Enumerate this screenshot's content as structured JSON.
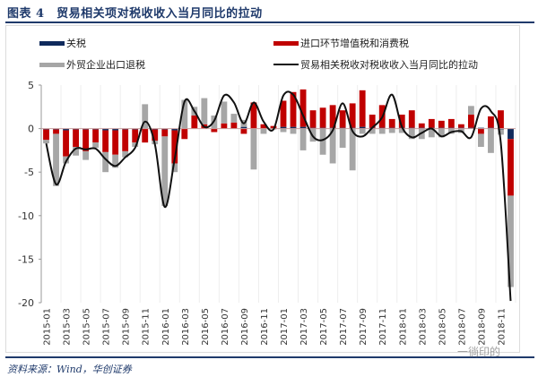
{
  "header": {
    "title": "图表 4　贸易相关项对税收收入当月同比的拉动"
  },
  "footer": {
    "source": "资料来源：Wind，华创证券",
    "watermark": "一徜印的"
  },
  "colors": {
    "tariff": "#0f2a5c",
    "import_vat": "#c00000",
    "export_rebate": "#a6a6a6",
    "line": "#111111",
    "axis": "#999999",
    "grid": "#eeeeee"
  },
  "chart_data": {
    "type": "bar",
    "stacked": true,
    "title": "贸易相关项对税收收入当月同比的拉动",
    "xlabel": "",
    "ylabel": "",
    "ylim": [
      -20,
      5
    ],
    "yticks": [
      5,
      0,
      -5,
      -10,
      -15,
      -20
    ],
    "grid": true,
    "legend_position": "top",
    "categories": [
      "2015-01",
      "2015-02",
      "2015-03",
      "2015-04",
      "2015-05",
      "2015-06",
      "2015-07",
      "2015-08",
      "2015-09",
      "2015-10",
      "2015-11",
      "2015-12",
      "2016-01",
      "2016-02",
      "2016-03",
      "2016-04",
      "2016-05",
      "2016-06",
      "2016-07",
      "2016-08",
      "2016-09",
      "2016-10",
      "2016-11",
      "2016-12",
      "2017-01",
      "2017-02",
      "2017-03",
      "2017-04",
      "2017-05",
      "2017-06",
      "2017-07",
      "2017-08",
      "2017-09",
      "2017-10",
      "2017-11",
      "2017-12",
      "2018-01",
      "2018-02",
      "2018-03",
      "2018-04",
      "2018-05",
      "2018-06",
      "2018-07",
      "2018-08",
      "2018-09",
      "2018-10",
      "2018-11",
      "2018-12"
    ],
    "xtick_labels": [
      "2015-01",
      "2015-03",
      "2015-05",
      "2015-07",
      "2015-09",
      "2015-11",
      "2016-01",
      "2016-03",
      "2016-05",
      "2016-07",
      "2016-09",
      "2016-11",
      "2017-01",
      "2017-03",
      "2017-05",
      "2017-07",
      "2017-09",
      "2017-11",
      "2018-01",
      "2018-03",
      "2018-05",
      "2018-07",
      "2018-09",
      "2018-11"
    ],
    "series": [
      {
        "name": "关税",
        "kind": "bar",
        "values": [
          -0.1,
          -0.1,
          -0.2,
          -0.1,
          -0.1,
          -0.1,
          -0.2,
          -0.2,
          -0.1,
          -0.1,
          0,
          -0.1,
          -0.1,
          -0.2,
          0,
          0,
          0,
          0,
          0,
          0,
          0.2,
          0,
          0,
          0,
          0.2,
          0.2,
          0.2,
          0.1,
          0.1,
          0.1,
          0.1,
          0.1,
          0.2,
          0.1,
          0.1,
          0.1,
          0.1,
          0.1,
          0.1,
          0.1,
          0.1,
          0.1,
          0.1,
          0.1,
          0.1,
          0.1,
          -0.1,
          -1.2
        ]
      },
      {
        "name": "进口环节增值税和消费税",
        "kind": "bar",
        "values": [
          -1.2,
          -0.5,
          -3.0,
          -2.0,
          -2.5,
          -1.5,
          -2.5,
          -2.8,
          -2.5,
          -1.5,
          -1.6,
          -1.3,
          -0.8,
          -3.8,
          -1.2,
          1.5,
          0.5,
          -0.4,
          0.6,
          0.7,
          -0.6,
          3.0,
          0.5,
          0.3,
          3.0,
          4.0,
          4.3,
          2.0,
          2.3,
          2.6,
          2.0,
          2.8,
          4.2,
          1.5,
          2.6,
          1.0,
          1.5,
          2.0,
          0.5,
          1.0,
          0.8,
          1.0,
          0.4,
          1.5,
          -0.6,
          1.3,
          2.1,
          -6.5
        ]
      },
      {
        "name": "外贸企业出口退税",
        "kind": "bar",
        "values": [
          -0.4,
          -6.0,
          -0.8,
          -1.0,
          -1.0,
          -0.6,
          -2.3,
          -1.5,
          -0.7,
          -0.5,
          2.8,
          -0.4,
          -8.0,
          -1.0,
          3.3,
          1.0,
          3.0,
          1.5,
          2.5,
          1.0,
          0.8,
          -4.7,
          -0.6,
          -0.1,
          -0.4,
          -0.6,
          -2.5,
          -1.5,
          -3.0,
          -4.0,
          -2.2,
          -4.8,
          -0.6,
          -0.6,
          -0.6,
          -0.5,
          -0.5,
          -1.2,
          -1.2,
          -1.0,
          -1.0,
          -0.6,
          -0.5,
          1.0,
          -1.5,
          -2.8,
          -0.6,
          -10.5
        ]
      },
      {
        "name": "贸易相关税收对税收收入当月同比的拉动",
        "kind": "line",
        "values": [
          -1.7,
          -6.4,
          -3.8,
          -2.3,
          -2.4,
          -2.3,
          -3.5,
          -4.3,
          -3.3,
          -2.2,
          0.8,
          -1.8,
          -9.0,
          -3.5,
          3.1,
          2.0,
          0.2,
          0.9,
          3.8,
          3.0,
          0.6,
          3.0,
          0.8,
          -0.1,
          3.8,
          3.9,
          1.5,
          -0.9,
          -1.3,
          -0.2,
          2.9,
          -0.3,
          -0.9,
          0.1,
          1.3,
          3.9,
          0.2,
          -1.0,
          -0.5,
          0.0,
          -0.9,
          -0.4,
          -0.3,
          -1.0,
          2.3,
          2.0,
          -1.6,
          -19.8
        ]
      }
    ]
  },
  "legend": [
    {
      "label": "关税",
      "type": "bar"
    },
    {
      "label": "进口环节增值税和消费税",
      "type": "bar"
    },
    {
      "label": "外贸企业出口退税",
      "type": "bar"
    },
    {
      "label": "贸易相关税收对税收收入当月同比的拉动",
      "type": "line"
    }
  ]
}
